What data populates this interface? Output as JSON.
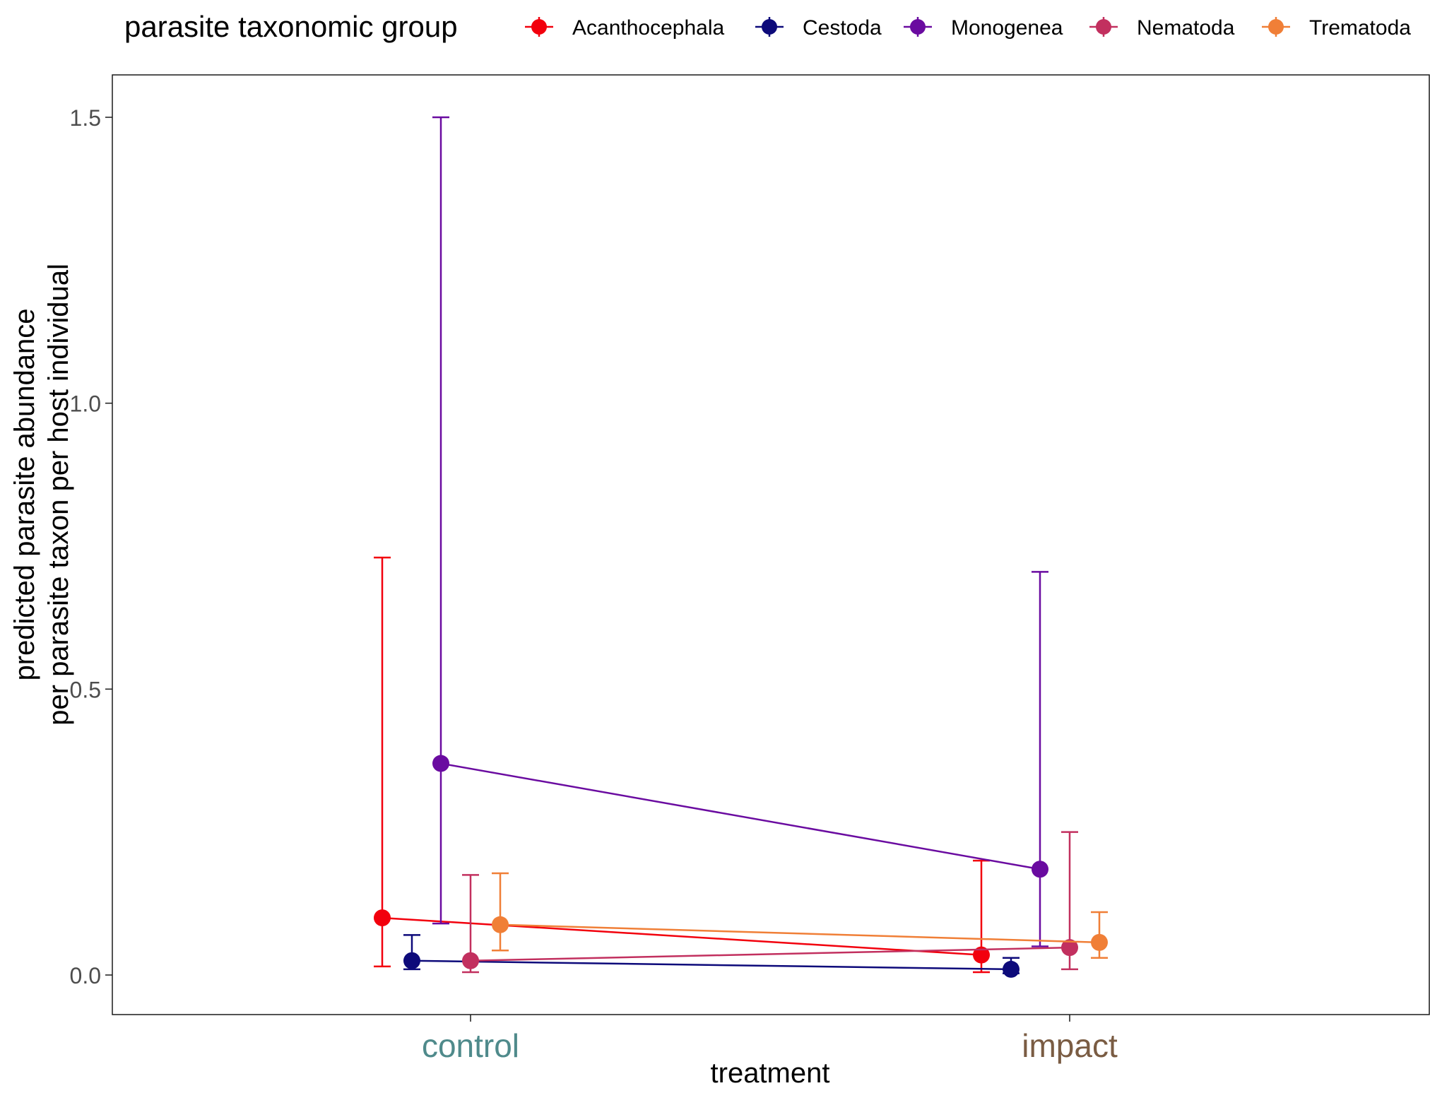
{
  "chart_data": {
    "type": "line",
    "title": "",
    "xlabel": "treatment",
    "ylabel": [
      "predicted parasite abundance",
      "per parasite taxon per host individual"
    ],
    "ylim": [
      -0.07,
      1.57
    ],
    "yticks": [
      0.0,
      0.5,
      1.0,
      1.5
    ],
    "ytick_labels": [
      "0.0",
      "0.5",
      "1.0",
      "1.5"
    ],
    "grid": false,
    "legend": {
      "title": "parasite taxonomic group",
      "placement": "top"
    },
    "categories": [
      {
        "label": "control",
        "color": "#4f8a8b"
      },
      {
        "label": "impact",
        "color": "#7a5c43"
      }
    ],
    "series": [
      {
        "name": "Acanthocephala",
        "color": "#f2000d",
        "values": [
          0.1,
          0.035
        ],
        "lower": [
          0.015,
          0.005
        ],
        "upper": [
          0.73,
          0.2
        ]
      },
      {
        "name": "Cestoda",
        "color": "#0d0a7a",
        "values": [
          0.025,
          0.01
        ],
        "lower": [
          0.01,
          0.003
        ],
        "upper": [
          0.07,
          0.03
        ]
      },
      {
        "name": "Monogenea",
        "color": "#6a0ba0",
        "values": [
          0.37,
          0.185
        ],
        "lower": [
          0.09,
          0.05
        ],
        "upper": [
          1.5,
          0.705
        ]
      },
      {
        "name": "Nematoda",
        "color": "#c2305f",
        "values": [
          0.025,
          0.048
        ],
        "lower": [
          0.005,
          0.01
        ],
        "upper": [
          0.175,
          0.25
        ]
      },
      {
        "name": "Trematoda",
        "color": "#f07f37",
        "values": [
          0.088,
          0.057
        ],
        "lower": [
          0.043,
          0.03
        ],
        "upper": [
          0.178,
          0.11
        ]
      }
    ]
  }
}
